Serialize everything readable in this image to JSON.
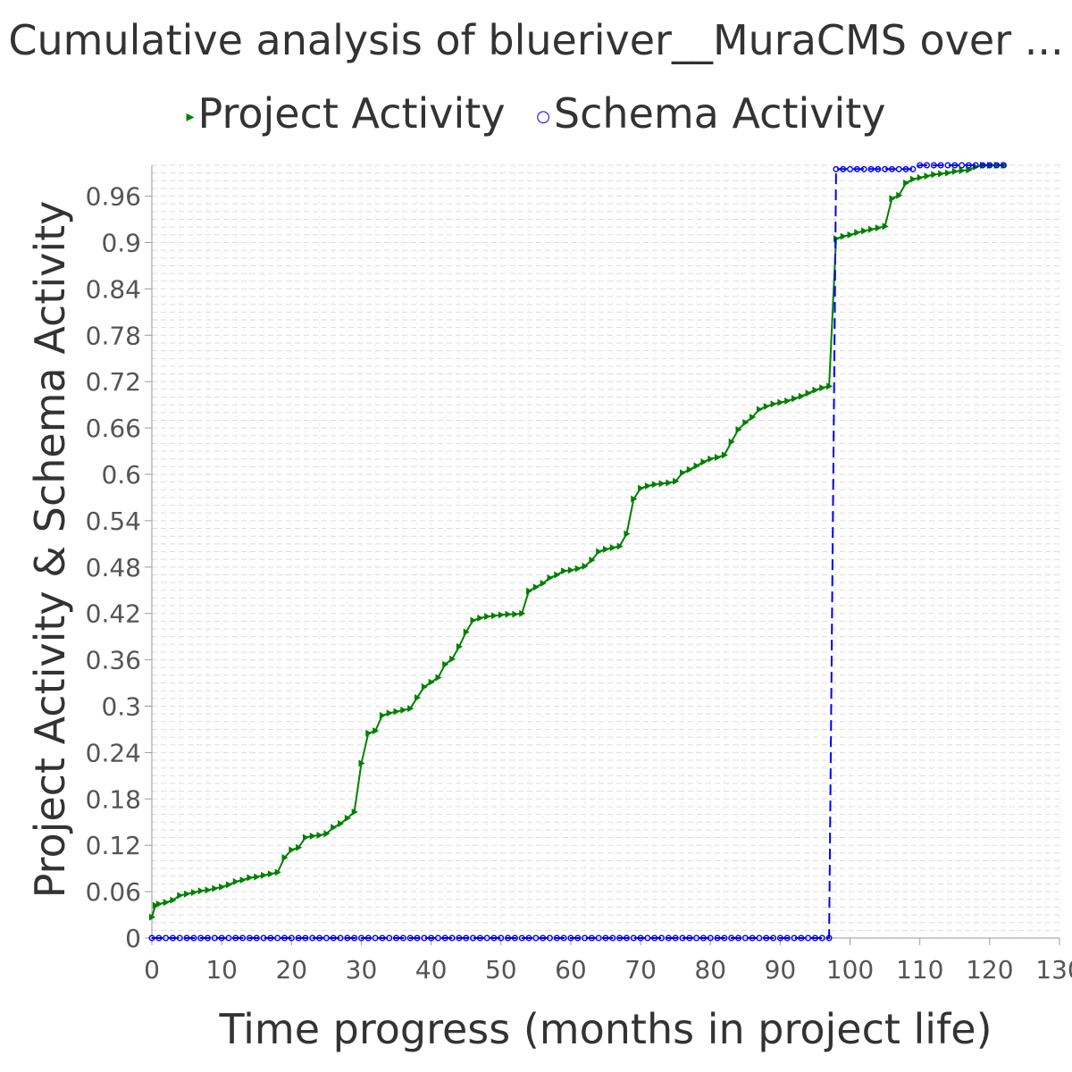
{
  "chart_data": {
    "type": "line",
    "title": "Cumulative analysis of blueriver__MuraCMS over ...",
    "xlabel": "Time progress (months in project life)",
    "ylabel": "Project Activity & Schema Activity",
    "xlim": [
      0,
      130
    ],
    "ylim": [
      0,
      1.0
    ],
    "x_ticks": [
      0,
      10,
      20,
      30,
      40,
      50,
      60,
      70,
      80,
      90,
      100,
      110,
      120,
      130
    ],
    "x_tick_labels": [
      "0",
      "10",
      "20",
      "30",
      "40",
      "50",
      "60",
      "70",
      "80",
      "90",
      "100",
      "110",
      "120",
      "130"
    ],
    "y_ticks": [
      0,
      0.06,
      0.12,
      0.18,
      0.24,
      0.3,
      0.36,
      0.42,
      0.48,
      0.54,
      0.6,
      0.66,
      0.72,
      0.78,
      0.84,
      0.9,
      0.96
    ],
    "y_tick_labels": [
      "0",
      "0.06",
      "0.12",
      "0.18",
      "0.24",
      "0.3",
      "0.36",
      "0.42",
      "0.48",
      "0.54",
      "0.6",
      "0.66",
      "0.72",
      "0.78",
      "0.84",
      "0.9",
      "0.96"
    ],
    "grid": true,
    "legend_position": "top",
    "series": [
      {
        "name": "Project Activity",
        "color": "#008000",
        "marker": "triangle-right",
        "line_style": "solid",
        "points": [
          [
            0,
            0.027
          ],
          [
            0.5,
            0.042
          ],
          [
            1,
            0.044
          ],
          [
            2,
            0.046
          ],
          [
            3,
            0.049
          ],
          [
            4,
            0.055
          ],
          [
            5,
            0.057
          ],
          [
            6,
            0.059
          ],
          [
            7,
            0.061
          ],
          [
            8,
            0.062
          ],
          [
            9,
            0.064
          ],
          [
            10,
            0.066
          ],
          [
            11,
            0.069
          ],
          [
            12,
            0.073
          ],
          [
            13,
            0.075
          ],
          [
            14,
            0.078
          ],
          [
            15,
            0.079
          ],
          [
            16,
            0.081
          ],
          [
            17,
            0.083
          ],
          [
            18,
            0.085
          ],
          [
            19,
            0.104
          ],
          [
            20,
            0.114
          ],
          [
            21,
            0.117
          ],
          [
            22,
            0.13
          ],
          [
            23,
            0.132
          ],
          [
            24,
            0.133
          ],
          [
            25,
            0.135
          ],
          [
            26,
            0.143
          ],
          [
            27,
            0.148
          ],
          [
            28,
            0.155
          ],
          [
            29,
            0.163
          ],
          [
            30,
            0.226
          ],
          [
            31,
            0.265
          ],
          [
            32,
            0.268
          ],
          [
            33,
            0.288
          ],
          [
            34,
            0.291
          ],
          [
            35,
            0.293
          ],
          [
            36,
            0.295
          ],
          [
            37,
            0.297
          ],
          [
            38,
            0.311
          ],
          [
            39,
            0.325
          ],
          [
            40,
            0.331
          ],
          [
            41,
            0.337
          ],
          [
            42,
            0.354
          ],
          [
            43,
            0.361
          ],
          [
            44,
            0.377
          ],
          [
            45,
            0.396
          ],
          [
            46,
            0.411
          ],
          [
            47,
            0.414
          ],
          [
            48,
            0.416
          ],
          [
            49,
            0.417
          ],
          [
            50,
            0.418
          ],
          [
            51,
            0.419
          ],
          [
            52,
            0.419
          ],
          [
            53,
            0.42
          ],
          [
            54,
            0.449
          ],
          [
            55,
            0.454
          ],
          [
            56,
            0.459
          ],
          [
            57,
            0.466
          ],
          [
            58,
            0.47
          ],
          [
            59,
            0.475
          ],
          [
            60,
            0.476
          ],
          [
            61,
            0.478
          ],
          [
            62,
            0.481
          ],
          [
            63,
            0.489
          ],
          [
            64,
            0.5
          ],
          [
            65,
            0.503
          ],
          [
            66,
            0.505
          ],
          [
            67,
            0.507
          ],
          [
            68,
            0.523
          ],
          [
            69,
            0.568
          ],
          [
            70,
            0.582
          ],
          [
            71,
            0.585
          ],
          [
            72,
            0.587
          ],
          [
            73,
            0.588
          ],
          [
            74,
            0.589
          ],
          [
            75,
            0.591
          ],
          [
            76,
            0.602
          ],
          [
            77,
            0.606
          ],
          [
            78,
            0.611
          ],
          [
            79,
            0.616
          ],
          [
            80,
            0.62
          ],
          [
            81,
            0.622
          ],
          [
            82,
            0.625
          ],
          [
            83,
            0.642
          ],
          [
            84,
            0.658
          ],
          [
            85,
            0.667
          ],
          [
            86,
            0.674
          ],
          [
            87,
            0.684
          ],
          [
            88,
            0.688
          ],
          [
            89,
            0.691
          ],
          [
            90,
            0.693
          ],
          [
            91,
            0.695
          ],
          [
            92,
            0.698
          ],
          [
            93,
            0.701
          ],
          [
            94,
            0.705
          ],
          [
            95,
            0.709
          ],
          [
            96,
            0.712
          ],
          [
            97,
            0.714
          ],
          [
            98,
            0.905
          ],
          [
            99,
            0.908
          ],
          [
            100,
            0.91
          ],
          [
            101,
            0.913
          ],
          [
            102,
            0.915
          ],
          [
            103,
            0.917
          ],
          [
            104,
            0.919
          ],
          [
            105,
            0.921
          ],
          [
            106,
            0.957
          ],
          [
            107,
            0.961
          ],
          [
            108,
            0.977
          ],
          [
            109,
            0.982
          ],
          [
            110,
            0.984
          ],
          [
            111,
            0.986
          ],
          [
            112,
            0.988
          ],
          [
            113,
            0.989
          ],
          [
            114,
            0.99
          ],
          [
            115,
            0.992
          ],
          [
            116,
            0.993
          ],
          [
            117,
            0.994
          ],
          [
            118,
            0.998
          ],
          [
            119,
            1.0
          ],
          [
            120,
            1.0
          ],
          [
            121,
            1.0
          ],
          [
            122,
            1.0
          ]
        ]
      },
      {
        "name": "Schema Activity",
        "color": "#0000ff",
        "marker": "circle",
        "line_style": "dashed",
        "points": [
          [
            0,
            0.0
          ],
          [
            1,
            0.0
          ],
          [
            2,
            0.0
          ],
          [
            3,
            0.0
          ],
          [
            4,
            0.0
          ],
          [
            5,
            0.0
          ],
          [
            6,
            0.0
          ],
          [
            7,
            0.0
          ],
          [
            8,
            0.0
          ],
          [
            9,
            0.0
          ],
          [
            10,
            0.0
          ],
          [
            11,
            0.0
          ],
          [
            12,
            0.0
          ],
          [
            13,
            0.0
          ],
          [
            14,
            0.0
          ],
          [
            15,
            0.0
          ],
          [
            16,
            0.0
          ],
          [
            17,
            0.0
          ],
          [
            18,
            0.0
          ],
          [
            19,
            0.0
          ],
          [
            20,
            0.0
          ],
          [
            21,
            0.0
          ],
          [
            22,
            0.0
          ],
          [
            23,
            0.0
          ],
          [
            24,
            0.0
          ],
          [
            25,
            0.0
          ],
          [
            26,
            0.0
          ],
          [
            27,
            0.0
          ],
          [
            28,
            0.0
          ],
          [
            29,
            0.0
          ],
          [
            30,
            0.0
          ],
          [
            31,
            0.0
          ],
          [
            32,
            0.0
          ],
          [
            33,
            0.0
          ],
          [
            34,
            0.0
          ],
          [
            35,
            0.0
          ],
          [
            36,
            0.0
          ],
          [
            37,
            0.0
          ],
          [
            38,
            0.0
          ],
          [
            39,
            0.0
          ],
          [
            40,
            0.0
          ],
          [
            41,
            0.0
          ],
          [
            42,
            0.0
          ],
          [
            43,
            0.0
          ],
          [
            44,
            0.0
          ],
          [
            45,
            0.0
          ],
          [
            46,
            0.0
          ],
          [
            47,
            0.0
          ],
          [
            48,
            0.0
          ],
          [
            49,
            0.0
          ],
          [
            50,
            0.0
          ],
          [
            51,
            0.0
          ],
          [
            52,
            0.0
          ],
          [
            53,
            0.0
          ],
          [
            54,
            0.0
          ],
          [
            55,
            0.0
          ],
          [
            56,
            0.0
          ],
          [
            57,
            0.0
          ],
          [
            58,
            0.0
          ],
          [
            59,
            0.0
          ],
          [
            60,
            0.0
          ],
          [
            61,
            0.0
          ],
          [
            62,
            0.0
          ],
          [
            63,
            0.0
          ],
          [
            64,
            0.0
          ],
          [
            65,
            0.0
          ],
          [
            66,
            0.0
          ],
          [
            67,
            0.0
          ],
          [
            68,
            0.0
          ],
          [
            69,
            0.0
          ],
          [
            70,
            0.0
          ],
          [
            71,
            0.0
          ],
          [
            72,
            0.0
          ],
          [
            73,
            0.0
          ],
          [
            74,
            0.0
          ],
          [
            75,
            0.0
          ],
          [
            76,
            0.0
          ],
          [
            77,
            0.0
          ],
          [
            78,
            0.0
          ],
          [
            79,
            0.0
          ],
          [
            80,
            0.0
          ],
          [
            81,
            0.0
          ],
          [
            82,
            0.0
          ],
          [
            83,
            0.0
          ],
          [
            84,
            0.0
          ],
          [
            85,
            0.0
          ],
          [
            86,
            0.0
          ],
          [
            87,
            0.0
          ],
          [
            88,
            0.0
          ],
          [
            89,
            0.0
          ],
          [
            90,
            0.0
          ],
          [
            91,
            0.0
          ],
          [
            92,
            0.0
          ],
          [
            93,
            0.0
          ],
          [
            94,
            0.0
          ],
          [
            95,
            0.0
          ],
          [
            96,
            0.0
          ],
          [
            97,
            0.0
          ],
          [
            98,
            0.995
          ],
          [
            99,
            0.995
          ],
          [
            100,
            0.995
          ],
          [
            101,
            0.995
          ],
          [
            102,
            0.995
          ],
          [
            103,
            0.995
          ],
          [
            104,
            0.995
          ],
          [
            105,
            0.995
          ],
          [
            106,
            0.995
          ],
          [
            107,
            0.995
          ],
          [
            108,
            0.995
          ],
          [
            109,
            0.995
          ],
          [
            110,
            1.0
          ],
          [
            111,
            1.0
          ],
          [
            112,
            1.0
          ],
          [
            113,
            1.0
          ],
          [
            114,
            1.0
          ],
          [
            115,
            1.0
          ],
          [
            116,
            1.0
          ],
          [
            117,
            1.0
          ],
          [
            118,
            1.0
          ],
          [
            119,
            1.0
          ],
          [
            120,
            1.0
          ],
          [
            121,
            1.0
          ],
          [
            122,
            1.0
          ]
        ]
      }
    ]
  }
}
